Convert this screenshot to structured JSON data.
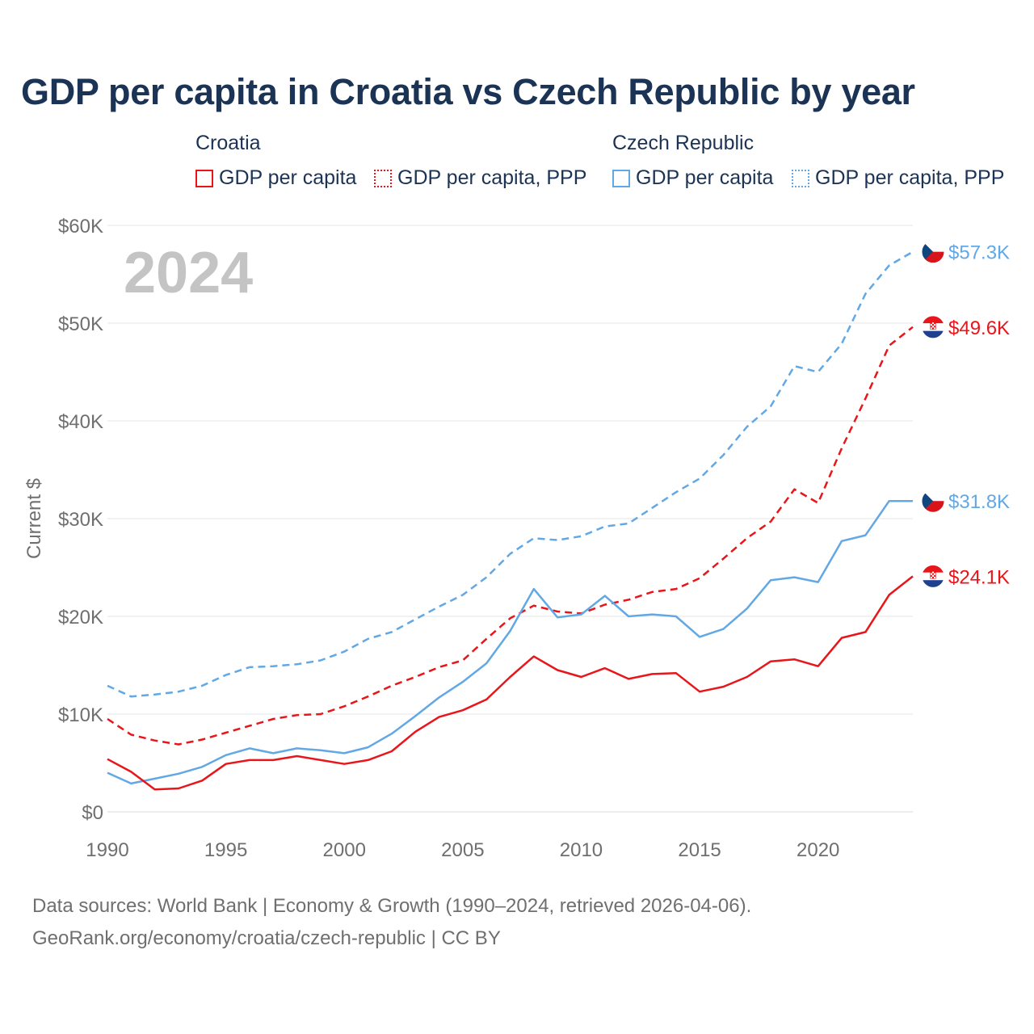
{
  "title": "GDP per capita in Croatia vs Czech Republic by year",
  "legend": {
    "groups": [
      {
        "name": "Croatia",
        "color": "#e8161a",
        "items": [
          {
            "label": "GDP per capita",
            "style": "solid"
          },
          {
            "label": "GDP per capita, PPP",
            "style": "dotted"
          }
        ]
      },
      {
        "name": "Czech Republic",
        "color": "#62a8e5",
        "items": [
          {
            "label": "GDP per capita",
            "style": "solid"
          },
          {
            "label": "GDP per capita, PPP",
            "style": "dotted"
          }
        ]
      }
    ]
  },
  "footer": {
    "line1": "Data sources: World Bank | Economy & Growth (1990–2024, retrieved 2026-04-06).",
    "line2": "GeoRank.org/economy/croatia/czech-republic | CC BY"
  },
  "chart_data": {
    "type": "line",
    "ylabel": "Current $",
    "watermark_year": "2024",
    "xlim": [
      1990,
      2024
    ],
    "ylim": [
      0,
      60000
    ],
    "x_ticks": [
      1990,
      1995,
      2000,
      2005,
      2010,
      2015,
      2020
    ],
    "y_ticks": [
      {
        "value": 0,
        "label": "$0"
      },
      {
        "value": 10000,
        "label": "$10K"
      },
      {
        "value": 20000,
        "label": "$20K"
      },
      {
        "value": 30000,
        "label": "$30K"
      },
      {
        "value": 40000,
        "label": "$40K"
      },
      {
        "value": 50000,
        "label": "$50K"
      },
      {
        "value": 60000,
        "label": "$60K"
      }
    ],
    "grid": true,
    "x": [
      1990,
      1991,
      1992,
      1993,
      1994,
      1995,
      1996,
      1997,
      1998,
      1999,
      2000,
      2001,
      2002,
      2003,
      2004,
      2005,
      2006,
      2007,
      2008,
      2009,
      2010,
      2011,
      2012,
      2013,
      2014,
      2015,
      2016,
      2017,
      2018,
      2019,
      2020,
      2021,
      2022,
      2023,
      2024
    ],
    "series": [
      {
        "id": "cz-ppp",
        "country": "Czech Republic",
        "name": "GDP per capita, PPP",
        "color": "#62a8e5",
        "dash": "dashed",
        "flag": "czech",
        "end_label": "$57.3K",
        "values": [
          12900,
          11800,
          12000,
          12300,
          12900,
          14000,
          14800,
          14900,
          15100,
          15500,
          16400,
          17700,
          18400,
          19700,
          21000,
          22200,
          24000,
          26400,
          28000,
          27800,
          28200,
          29200,
          29500,
          31100,
          32700,
          34100,
          36500,
          39400,
          41500,
          45600,
          45000,
          47900,
          53000,
          55900,
          57300
        ]
      },
      {
        "id": "hr-ppp",
        "country": "Croatia",
        "name": "GDP per capita, PPP",
        "color": "#e8161a",
        "dash": "dashed",
        "flag": "croatia",
        "end_label": "$49.6K",
        "values": [
          9500,
          7900,
          7300,
          6900,
          7400,
          8100,
          8800,
          9500,
          9900,
          10000,
          10800,
          11800,
          12900,
          13800,
          14800,
          15500,
          17700,
          19800,
          21100,
          20500,
          20300,
          21200,
          21700,
          22500,
          22800,
          23900,
          25900,
          28000,
          29700,
          33000,
          31600,
          37200,
          42300,
          47700,
          49600
        ]
      },
      {
        "id": "cz-gdp",
        "country": "Czech Republic",
        "name": "GDP per capita",
        "color": "#62a8e5",
        "dash": "solid",
        "flag": "czech",
        "end_label": "$31.8K",
        "values": [
          4000,
          2900,
          3400,
          3900,
          4600,
          5800,
          6500,
          6000,
          6500,
          6300,
          6000,
          6600,
          8000,
          9800,
          11700,
          13300,
          15200,
          18500,
          22800,
          19900,
          20200,
          22100,
          20000,
          20200,
          20000,
          17900,
          18700,
          20800,
          23700,
          24000,
          23500,
          27700,
          28300,
          31800,
          31800
        ]
      },
      {
        "id": "hr-gdp",
        "country": "Croatia",
        "name": "GDP per capita",
        "color": "#e8161a",
        "dash": "solid",
        "flag": "croatia",
        "end_label": "$24.1K",
        "values": [
          5400,
          4100,
          2300,
          2400,
          3200,
          4900,
          5300,
          5300,
          5700,
          5300,
          4900,
          5300,
          6200,
          8200,
          9700,
          10400,
          11500,
          13800,
          15900,
          14500,
          13800,
          14700,
          13600,
          14100,
          14200,
          12300,
          12800,
          13800,
          15400,
          15600,
          14900,
          17800,
          18400,
          22200,
          24100
        ]
      }
    ]
  }
}
